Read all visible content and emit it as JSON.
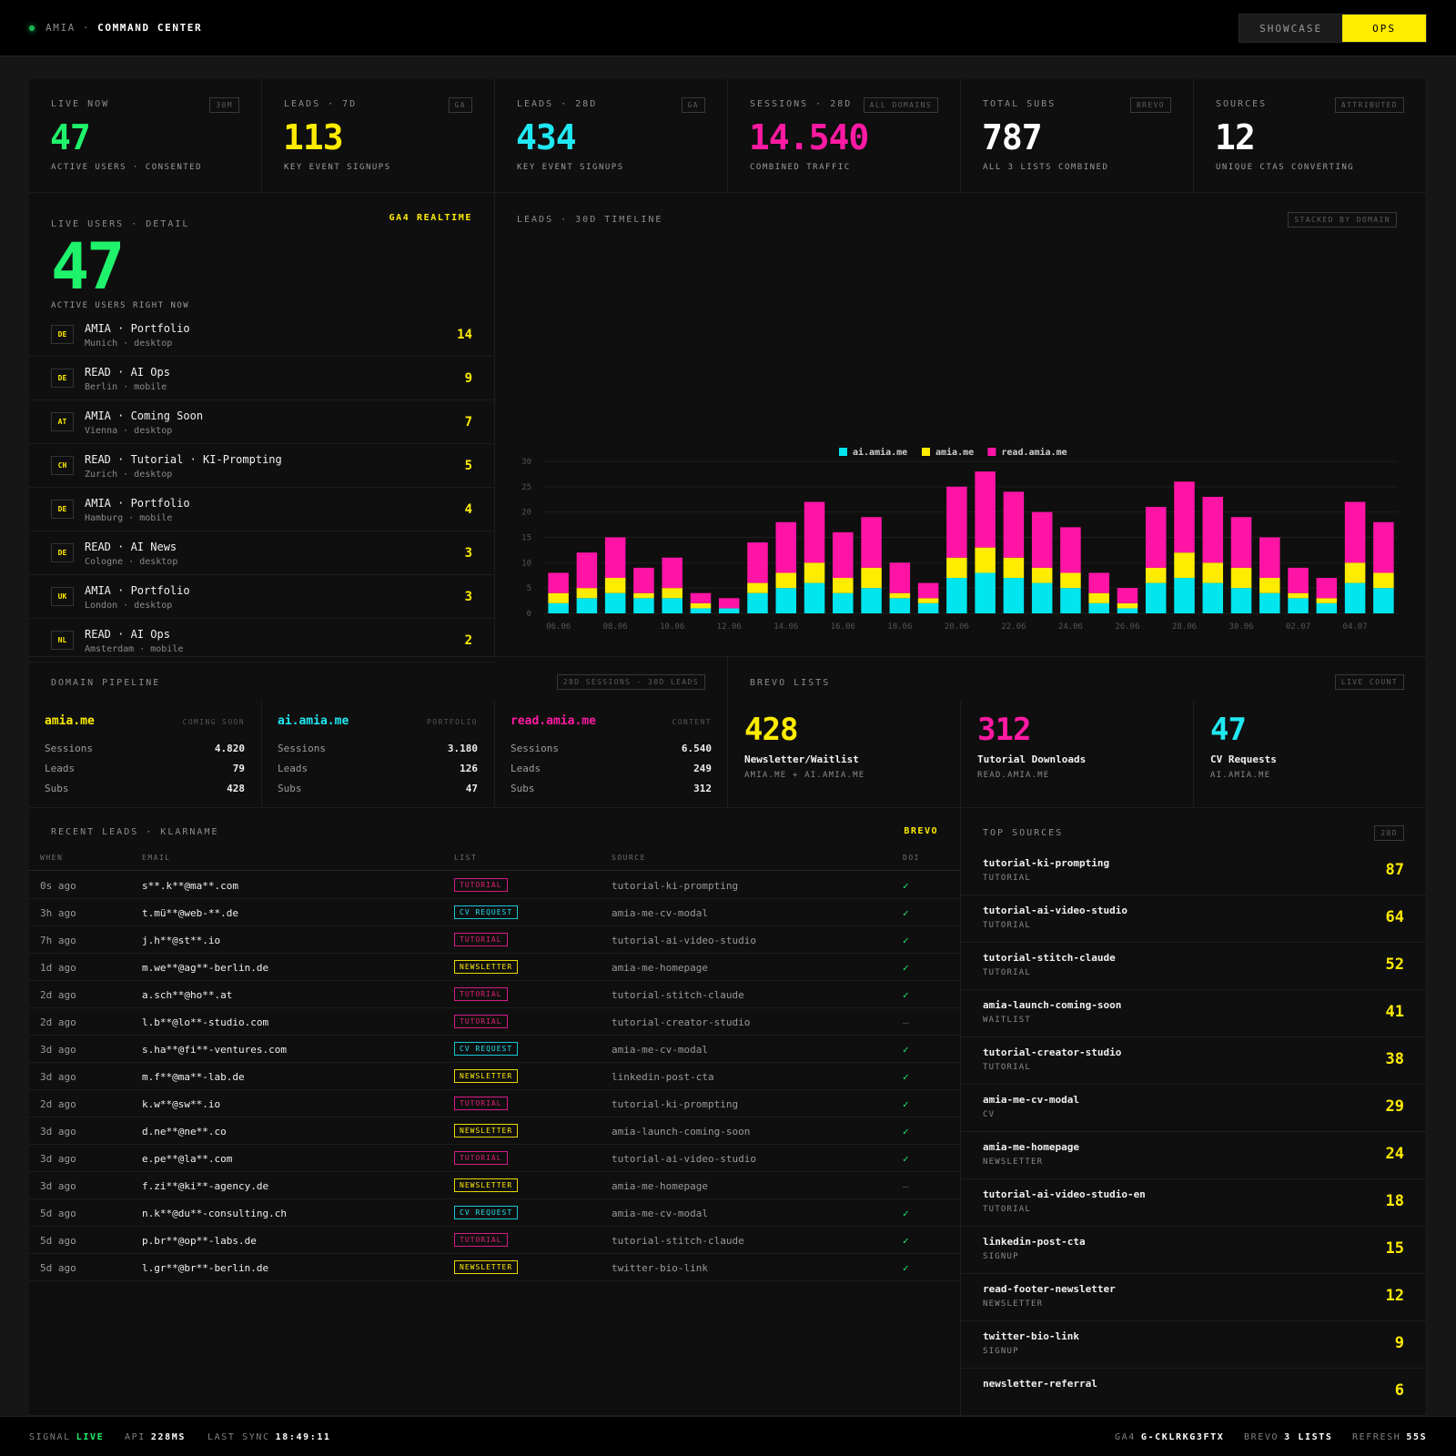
{
  "header": {
    "brand": "AMIA",
    "separator": "·",
    "title": "COMMAND CENTER",
    "modes": [
      "SHOWCASE",
      "OPS"
    ],
    "active_mode": "OPS"
  },
  "kpis": [
    {
      "label": "LIVE NOW",
      "tag": "30M",
      "value": "47",
      "sub": "ACTIVE USERS · CONSENTED",
      "color": "#1ff26b"
    },
    {
      "label": "LEADS · 7D",
      "tag": "GA",
      "value": "113",
      "sub": "KEY EVENT SIGNUPS",
      "color": "#ffec00"
    },
    {
      "label": "LEADS · 28D",
      "tag": "GA",
      "value": "434",
      "sub": "KEY EVENT SIGNUPS",
      "color": "#20e8f2"
    },
    {
      "label": "SESSIONS · 28D",
      "tag": "ALL DOMAINS",
      "value": "14.540",
      "sub": "COMBINED TRAFFIC",
      "color": "#ff1aa3"
    },
    {
      "label": "TOTAL SUBS",
      "tag": "BREVO",
      "value": "787",
      "sub": "ALL 3 LISTS COMBINED",
      "color": "#ffffff"
    },
    {
      "label": "SOURCES",
      "tag": "ATTRIBUTED",
      "value": "12",
      "sub": "UNIQUE CTAS CONVERTING",
      "color": "#ffffff"
    }
  ],
  "live": {
    "label": "LIVE USERS · DETAIL",
    "source": "GA4 REALTIME",
    "count": "47",
    "sub": "ACTIVE USERS RIGHT NOW",
    "rows": [
      {
        "cc": "DE",
        "name": "AMIA · Portfolio",
        "meta": "Munich · desktop",
        "count": "14"
      },
      {
        "cc": "DE",
        "name": "READ · AI Ops",
        "meta": "Berlin · mobile",
        "count": "9"
      },
      {
        "cc": "AT",
        "name": "AMIA · Coming Soon",
        "meta": "Vienna · desktop",
        "count": "7"
      },
      {
        "cc": "CH",
        "name": "READ · Tutorial · KI-Prompting",
        "meta": "Zurich · desktop",
        "count": "5"
      },
      {
        "cc": "DE",
        "name": "AMIA · Portfolio",
        "meta": "Hamburg · mobile",
        "count": "4"
      },
      {
        "cc": "DE",
        "name": "READ · AI News",
        "meta": "Cologne · desktop",
        "count": "3"
      },
      {
        "cc": "UK",
        "name": "AMIA · Portfolio",
        "meta": "London · desktop",
        "count": "3"
      },
      {
        "cc": "NL",
        "name": "READ · AI Ops",
        "meta": "Amsterdam · mobile",
        "count": "2"
      }
    ]
  },
  "timeline": {
    "label": "LEADS · 30D TIMELINE",
    "tag": "STACKED BY DOMAIN"
  },
  "chart_data": {
    "type": "bar",
    "stacked": true,
    "x": [
      "06.06",
      "07.06",
      "08.06",
      "09.06",
      "10.06",
      "11.06",
      "12.06",
      "13.06",
      "14.06",
      "15.06",
      "16.06",
      "17.06",
      "18.06",
      "19.06",
      "20.06",
      "21.06",
      "22.06",
      "23.06",
      "24.06",
      "25.06",
      "26.06",
      "27.06",
      "28.06",
      "29.06",
      "30.06",
      "01.07",
      "02.07",
      "03.07",
      "04.07",
      "05.07"
    ],
    "tick_labels": [
      "06.06",
      "08.06",
      "10.06",
      "12.06",
      "14.06",
      "16.06",
      "18.06",
      "20.06",
      "22.06",
      "24.06",
      "26.06",
      "28.06",
      "30.06",
      "02.07",
      "04.07"
    ],
    "series": [
      {
        "name": "ai.amia.me",
        "color": "#00e5ee",
        "values": [
          2,
          3,
          4,
          3,
          3,
          1,
          1,
          4,
          5,
          6,
          4,
          5,
          3,
          2,
          7,
          8,
          7,
          6,
          5,
          2,
          1,
          6,
          7,
          6,
          5,
          4,
          3,
          2,
          6,
          5
        ]
      },
      {
        "name": "amia.me",
        "color": "#ffec00",
        "values": [
          2,
          2,
          3,
          1,
          2,
          1,
          0,
          2,
          3,
          4,
          3,
          4,
          1,
          1,
          4,
          5,
          4,
          3,
          3,
          2,
          1,
          3,
          5,
          4,
          4,
          3,
          1,
          1,
          4,
          3
        ]
      },
      {
        "name": "read.amia.me",
        "color": "#ff14a6",
        "values": [
          4,
          7,
          8,
          5,
          6,
          2,
          2,
          8,
          10,
          12,
          9,
          10,
          6,
          3,
          14,
          15,
          13,
          11,
          9,
          4,
          3,
          12,
          14,
          13,
          10,
          8,
          5,
          4,
          12,
          10
        ]
      }
    ],
    "ylim": [
      0,
      30
    ],
    "yticks": [
      0,
      5,
      10,
      15,
      20,
      25,
      30
    ],
    "grid": true,
    "legend": "top"
  },
  "pipeline": {
    "label": "DOMAIN PIPELINE",
    "tag": "28D SESSIONS · 30D LEADS",
    "k_sessions": "Sessions",
    "k_leads": "Leads",
    "k_subs": "Subs",
    "domains": [
      {
        "name": "amia.me",
        "type": "COMING SOON",
        "color": "#ffec00",
        "sessions": "4.820",
        "leads": "79",
        "subs": "428"
      },
      {
        "name": "ai.amia.me",
        "type": "PORTFOLIO",
        "color": "#20e8f2",
        "sessions": "3.180",
        "leads": "126",
        "subs": "47"
      },
      {
        "name": "read.amia.me",
        "type": "CONTENT",
        "color": "#ff1aa3",
        "sessions": "6.540",
        "leads": "249",
        "subs": "312"
      }
    ]
  },
  "brevo": {
    "label": "BREVO LISTS",
    "tag": "LIVE COUNT",
    "lists": [
      {
        "value": "428",
        "name": "Newsletter/Waitlist",
        "sub": "AMIA.ME + AI.AMIA.ME",
        "color": "#ffec00"
      },
      {
        "value": "312",
        "name": "Tutorial Downloads",
        "sub": "READ.AMIA.ME",
        "color": "#ff1aa3"
      },
      {
        "value": "47",
        "name": "CV Requests",
        "sub": "AI.AMIA.ME",
        "color": "#20e8f2"
      }
    ]
  },
  "leads": {
    "label": "RECENT LEADS · KLARNAME",
    "source": "BREVO",
    "columns": [
      "WHEN",
      "EMAIL",
      "LIST",
      "SOURCE",
      "DOI"
    ],
    "rows": [
      {
        "when": "0s ago",
        "email": "s**.k**@ma**.com",
        "list": "TUTORIAL",
        "src": "tutorial-ki-prompting",
        "doi": "✓"
      },
      {
        "when": "3h ago",
        "email": "t.mü**@web-**.de",
        "list": "CV REQUEST",
        "src": "amia-me-cv-modal",
        "doi": "✓"
      },
      {
        "when": "7h ago",
        "email": "j.h**@st**.io",
        "list": "TUTORIAL",
        "src": "tutorial-ai-video-studio",
        "doi": "✓"
      },
      {
        "when": "1d ago",
        "email": "m.we**@ag**-berlin.de",
        "list": "NEWSLETTER",
        "src": "amia-me-homepage",
        "doi": "✓"
      },
      {
        "when": "2d ago",
        "email": "a.sch**@ho**.at",
        "list": "TUTORIAL",
        "src": "tutorial-stitch-claude",
        "doi": "✓"
      },
      {
        "when": "2d ago",
        "email": "l.b**@lo**-studio.com",
        "list": "TUTORIAL",
        "src": "tutorial-creator-studio",
        "doi": "—"
      },
      {
        "when": "3d ago",
        "email": "s.ha**@fi**-ventures.com",
        "list": "CV REQUEST",
        "src": "amia-me-cv-modal",
        "doi": "✓"
      },
      {
        "when": "3d ago",
        "email": "m.f**@ma**-lab.de",
        "list": "NEWSLETTER",
        "src": "linkedin-post-cta",
        "doi": "✓"
      },
      {
        "when": "2d ago",
        "email": "k.w**@sw**.io",
        "list": "TUTORIAL",
        "src": "tutorial-ki-prompting",
        "doi": "✓"
      },
      {
        "when": "3d ago",
        "email": "d.ne**@ne**.co",
        "list": "NEWSLETTER",
        "src": "amia-launch-coming-soon",
        "doi": "✓"
      },
      {
        "when": "3d ago",
        "email": "e.pe**@la**.com",
        "list": "TUTORIAL",
        "src": "tutorial-ai-video-studio",
        "doi": "✓"
      },
      {
        "when": "3d ago",
        "email": "f.zi**@ki**-agency.de",
        "list": "NEWSLETTER",
        "src": "amia-me-homepage",
        "doi": "—"
      },
      {
        "when": "5d ago",
        "email": "n.k**@du**-consulting.ch",
        "list": "CV REQUEST",
        "src": "amia-me-cv-modal",
        "doi": "✓"
      },
      {
        "when": "5d ago",
        "email": "p.br**@op**-labs.de",
        "list": "TUTORIAL",
        "src": "tutorial-stitch-claude",
        "doi": "✓"
      },
      {
        "when": "5d ago",
        "email": "l.gr**@br**-berlin.de",
        "list": "NEWSLETTER",
        "src": "twitter-bio-link",
        "doi": "✓"
      }
    ]
  },
  "sources": {
    "label": "TOP SOURCES",
    "tag": "28D",
    "rows": [
      {
        "name": "tutorial-ki-prompting",
        "type": "TUTORIAL",
        "count": "87"
      },
      {
        "name": "tutorial-ai-video-studio",
        "type": "TUTORIAL",
        "count": "64"
      },
      {
        "name": "tutorial-stitch-claude",
        "type": "TUTORIAL",
        "count": "52"
      },
      {
        "name": "amia-launch-coming-soon",
        "type": "WAITLIST",
        "count": "41"
      },
      {
        "name": "tutorial-creator-studio",
        "type": "TUTORIAL",
        "count": "38"
      },
      {
        "name": "amia-me-cv-modal",
        "type": "CV",
        "count": "29"
      },
      {
        "name": "amia-me-homepage",
        "type": "NEWSLETTER",
        "count": "24"
      },
      {
        "name": "tutorial-ai-video-studio-en",
        "type": "TUTORIAL",
        "count": "18"
      },
      {
        "name": "linkedin-post-cta",
        "type": "SIGNUP",
        "count": "15"
      },
      {
        "name": "read-footer-newsletter",
        "type": "NEWSLETTER",
        "count": "12"
      },
      {
        "name": "twitter-bio-link",
        "type": "SIGNUP",
        "count": "9"
      },
      {
        "name": "newsletter-referral",
        "type": "",
        "count": "6"
      }
    ]
  },
  "footer": {
    "signal_label": "SIGNAL",
    "signal_value": "LIVE",
    "api_label": "API",
    "api_value": "228MS",
    "sync_label": "LAST SYNC",
    "sync_value": "18:49:11",
    "ga4_label": "GA4",
    "ga4_value": "G-CKLRKG3FTX",
    "brevo_label": "BREVO",
    "brevo_value": "3 LISTS",
    "refresh_label": "REFRESH",
    "refresh_value": "55S"
  }
}
